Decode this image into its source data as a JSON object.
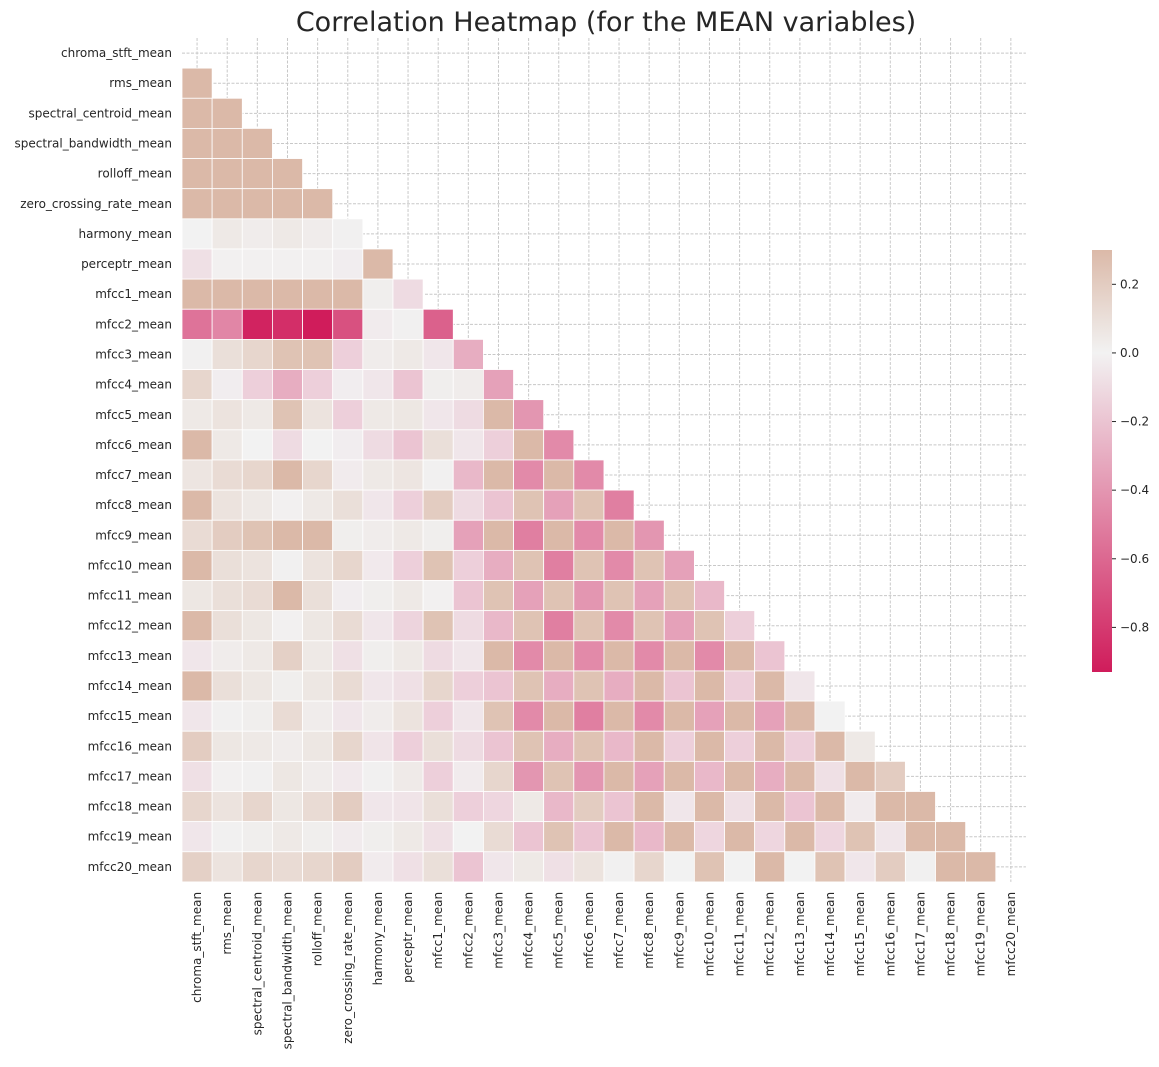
{
  "chart_data": {
    "type": "heatmap",
    "title": "Correlation Heatmap (for the MEAN variables)",
    "variables": [
      "chroma_stft_mean",
      "rms_mean",
      "spectral_centroid_mean",
      "spectral_bandwidth_mean",
      "rolloff_mean",
      "zero_crossing_rate_mean",
      "harmony_mean",
      "perceptr_mean",
      "mfcc1_mean",
      "mfcc2_mean",
      "mfcc3_mean",
      "mfcc4_mean",
      "mfcc5_mean",
      "mfcc6_mean",
      "mfcc7_mean",
      "mfcc8_mean",
      "mfcc9_mean",
      "mfcc10_mean",
      "mfcc11_mean",
      "mfcc12_mean",
      "mfcc13_mean",
      "mfcc14_mean",
      "mfcc15_mean",
      "mfcc16_mean",
      "mfcc17_mean",
      "mfcc18_mean",
      "mfcc19_mean",
      "mfcc20_mean"
    ],
    "mask": "upper triangle including diagonal",
    "lower_triangle_values": [
      [],
      [
        0.6
      ],
      [
        0.5,
        0.8
      ],
      [
        0.5,
        0.7,
        0.9
      ],
      [
        0.6,
        0.8,
        0.95,
        0.95
      ],
      [
        0.5,
        0.7,
        0.9,
        0.7,
        0.85
      ],
      [
        0.0,
        0.05,
        0.03,
        0.05,
        0.03,
        0.01
      ],
      [
        -0.08,
        -0.01,
        -0.01,
        -0.01,
        -0.01,
        -0.02,
        0.6
      ],
      [
        0.4,
        0.6,
        0.8,
        0.7,
        0.8,
        0.6,
        0.02,
        -0.1
      ],
      [
        -0.55,
        -0.47,
        -0.9,
        -0.85,
        -0.93,
        -0.7,
        -0.03,
        0.01,
        -0.63
      ],
      [
        0.01,
        0.1,
        0.15,
        0.25,
        0.25,
        -0.15,
        0.03,
        0.05,
        -0.05,
        -0.3
      ],
      [
        0.15,
        -0.02,
        -0.15,
        -0.3,
        -0.15,
        -0.02,
        -0.05,
        -0.2,
        0.02,
        0.03,
        -0.35
      ],
      [
        0.05,
        0.08,
        0.05,
        0.25,
        0.08,
        -0.15,
        0.05,
        0.06,
        -0.05,
        -0.1,
        0.4,
        -0.4
      ],
      [
        0.3,
        0.05,
        0.0,
        -0.1,
        0.0,
        -0.02,
        -0.1,
        -0.2,
        0.1,
        -0.05,
        -0.15,
        0.3,
        -0.45
      ],
      [
        0.07,
        0.12,
        0.15,
        0.3,
        0.15,
        -0.03,
        0.05,
        0.07,
        0.01,
        -0.25,
        0.3,
        -0.45,
        0.3,
        -0.45
      ],
      [
        0.35,
        0.08,
        0.05,
        -0.01,
        0.05,
        0.1,
        -0.05,
        -0.15,
        0.2,
        -0.1,
        -0.2,
        0.25,
        -0.35,
        0.25,
        -0.5
      ],
      [
        0.12,
        0.2,
        0.25,
        0.3,
        0.3,
        0.02,
        0.03,
        0.05,
        0.02,
        -0.35,
        0.3,
        -0.5,
        0.3,
        -0.45,
        0.3,
        -0.4
      ],
      [
        0.3,
        0.1,
        0.08,
        0.01,
        0.08,
        0.15,
        -0.04,
        -0.15,
        0.25,
        -0.15,
        -0.3,
        0.25,
        -0.5,
        0.25,
        -0.45,
        0.25,
        -0.35
      ],
      [
        0.06,
        0.1,
        0.12,
        0.3,
        0.1,
        -0.02,
        0.02,
        0.05,
        -0.01,
        -0.2,
        0.25,
        -0.35,
        0.25,
        -0.4,
        0.25,
        -0.35,
        0.25,
        -0.25
      ],
      [
        0.32,
        0.1,
        0.06,
        -0.01,
        0.06,
        0.12,
        -0.05,
        -0.13,
        0.25,
        -0.1,
        -0.25,
        0.25,
        -0.5,
        0.25,
        -0.45,
        0.25,
        -0.35,
        0.25,
        -0.15
      ],
      [
        -0.05,
        0.03,
        0.05,
        0.18,
        0.05,
        -0.08,
        0.02,
        0.05,
        -0.1,
        -0.05,
        0.3,
        -0.45,
        0.3,
        -0.45,
        0.3,
        -0.45,
        0.3,
        -0.45,
        0.3,
        -0.2
      ],
      [
        0.32,
        0.1,
        0.06,
        0.02,
        0.06,
        0.12,
        -0.05,
        -0.08,
        0.15,
        -0.15,
        -0.2,
        0.25,
        -0.3,
        0.25,
        -0.3,
        0.3,
        -0.2,
        0.3,
        -0.15,
        0.3,
        -0.05
      ],
      [
        -0.05,
        0.01,
        0.02,
        0.12,
        0.03,
        -0.05,
        0.03,
        0.08,
        -0.15,
        -0.05,
        0.25,
        -0.45,
        0.3,
        -0.5,
        0.3,
        -0.45,
        0.3,
        -0.35,
        0.3,
        -0.35,
        0.3,
        0.0
      ],
      [
        0.2,
        0.06,
        0.05,
        0.03,
        0.06,
        0.15,
        -0.06,
        -0.15,
        0.1,
        -0.1,
        -0.2,
        0.25,
        -0.3,
        0.25,
        -0.25,
        0.3,
        -0.15,
        0.3,
        -0.15,
        0.3,
        -0.15,
        0.3,
        0.05
      ],
      [
        -0.08,
        -0.01,
        0.01,
        0.06,
        0.03,
        -0.04,
        0.01,
        0.04,
        -0.15,
        -0.03,
        0.15,
        -0.4,
        0.25,
        -0.4,
        0.3,
        -0.35,
        0.3,
        -0.25,
        0.3,
        -0.3,
        0.3,
        -0.08,
        0.3,
        0.2
      ],
      [
        0.15,
        0.08,
        0.15,
        0.06,
        0.12,
        0.2,
        -0.05,
        -0.06,
        0.1,
        -0.15,
        -0.12,
        0.05,
        -0.25,
        0.2,
        -0.2,
        0.3,
        -0.05,
        0.3,
        -0.08,
        0.3,
        -0.2,
        0.3,
        -0.03,
        0.3,
        0.3
      ],
      [
        -0.05,
        0.01,
        0.02,
        0.05,
        0.02,
        -0.03,
        0.02,
        0.05,
        -0.08,
        0.0,
        0.12,
        -0.2,
        0.25,
        -0.2,
        0.3,
        -0.25,
        0.3,
        -0.12,
        0.3,
        -0.12,
        0.3,
        -0.12,
        0.25,
        -0.05,
        0.3,
        0.3
      ],
      [
        0.18,
        0.08,
        0.15,
        0.12,
        0.15,
        0.2,
        -0.03,
        -0.08,
        0.1,
        -0.2,
        -0.05,
        0.05,
        -0.08,
        0.08,
        0.01,
        0.15,
        0.0,
        0.25,
        0.0,
        0.3,
        0.0,
        0.25,
        -0.05,
        0.2,
        0.01,
        0.3,
        0.3
      ]
    ],
    "colorbar": {
      "vmin": -0.93,
      "vmax": 0.3,
      "ticks": [
        "0.2",
        "0.0",
        "−0.2",
        "−0.4",
        "−0.6",
        "−0.8"
      ],
      "tick_values": [
        0.2,
        0.0,
        -0.2,
        -0.4,
        -0.6,
        -0.8
      ],
      "colormap": "diverging",
      "colors": {
        "negative": "#d01c5b",
        "center": "#f2f2f2",
        "positive": "#dbb9a8"
      }
    },
    "grid": true,
    "legend": "colorbar right"
  }
}
